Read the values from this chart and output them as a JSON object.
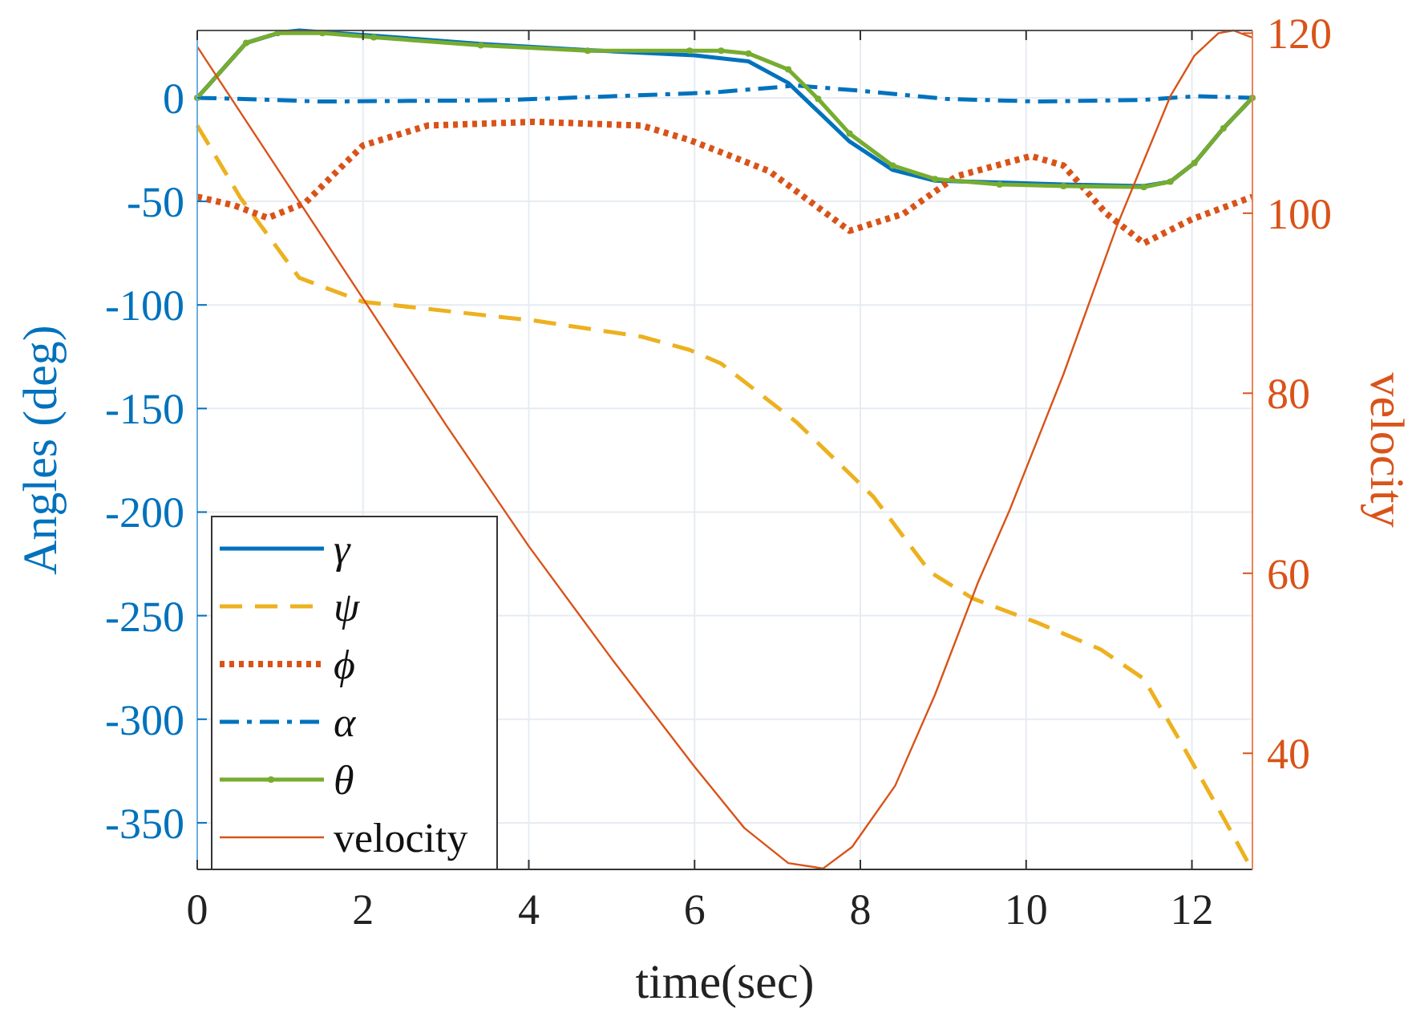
{
  "chart_data": {
    "type": "line",
    "xlabel": "time(sec)",
    "ylabel": "Angles (deg)",
    "y2label": "velocity",
    "xlim": [
      0,
      12.73
    ],
    "xticks": [
      0,
      2,
      4,
      6,
      8,
      10,
      12
    ],
    "ylim": [
      -372.5,
      32.5
    ],
    "yticks": [
      -350,
      -300,
      -250,
      -200,
      -150,
      -100,
      -50,
      0
    ],
    "y2lim": [
      27.1,
      120.3
    ],
    "y2ticks": [
      40,
      60,
      80,
      100,
      120
    ],
    "grid": true,
    "legend": "bottom left",
    "series": [
      {
        "name": "γ",
        "color": "#0072bd",
        "line_style": "solid",
        "x": [
          0,
          0.59,
          1.0,
          1.23,
          2.13,
          3.42,
          4.71,
          6.0,
          6.65,
          7.13,
          7.87,
          8.39,
          8.9,
          10.45,
          11.42,
          11.74,
          12.03,
          12.38,
          12.73
        ],
        "values": [
          0,
          26.5,
          31.5,
          32.5,
          30,
          26,
          23,
          20.5,
          17.6,
          7.2,
          -21.1,
          -34.8,
          -40,
          -41.8,
          -42.6,
          -40.5,
          -31.5,
          -14.7,
          0
        ]
      },
      {
        "name": "ψ",
        "color": "#edb120",
        "line_style": "dashed",
        "x": [
          0,
          0.52,
          1.23,
          2.0,
          4.07,
          5.36,
          5.94,
          6.32,
          7.23,
          8.16,
          8.84,
          9.36,
          10.13,
          10.9,
          11.42,
          11.87,
          12.38,
          12.68
        ],
        "values": [
          -13.4,
          -48.2,
          -86.9,
          -98.5,
          -107.6,
          -115.3,
          -121.7,
          -128.3,
          -156.6,
          -192.7,
          -228.9,
          -241.8,
          -253.3,
          -266.3,
          -280.5,
          -311.4,
          -347.5,
          -369.4
        ]
      },
      {
        "name": "ϕ",
        "color": "#d95319",
        "line_style": "dotted",
        "x": [
          0,
          0.45,
          0.85,
          1.3,
          2.0,
          2.78,
          4.07,
          5.36,
          5.94,
          6.32,
          6.9,
          7.87,
          8.52,
          9.16,
          10.06,
          10.45,
          10.97,
          11.42,
          12.0,
          12.73
        ],
        "values": [
          -47.8,
          -52,
          -58,
          -50.8,
          -23,
          -13.4,
          -11.6,
          -13.4,
          -20.4,
          -26.3,
          -35.4,
          -64.2,
          -56,
          -37.9,
          -28.1,
          -32.7,
          -56,
          -70.2,
          -58.6,
          -47.8
        ]
      },
      {
        "name": "α",
        "color": "#0072bd",
        "line_style": "dashdot",
        "x": [
          0,
          0.5,
          1.49,
          3.65,
          5.94,
          6.32,
          7.23,
          8.0,
          9.03,
          10.13,
          11.42,
          12.06,
          12.73
        ],
        "values": [
          0,
          -0.5,
          -1.8,
          -1.2,
          2.1,
          2.9,
          5.9,
          3.4,
          -0.5,
          -1.8,
          -1,
          0.8,
          0
        ]
      },
      {
        "name": "θ",
        "color": "#77ac30",
        "line_style": "solid",
        "marker": "circle",
        "x": [
          0,
          0.59,
          0.97,
          1.51,
          2.13,
          3.42,
          4.71,
          5.94,
          6.32,
          6.65,
          7.13,
          7.49,
          7.87,
          8.39,
          8.9,
          9.68,
          10.45,
          11.42,
          11.74,
          12.03,
          12.38,
          12.73
        ],
        "values": [
          0,
          26.5,
          31.2,
          31.2,
          29.2,
          25.3,
          22.7,
          22.7,
          22.7,
          21.4,
          13.7,
          -0.5,
          -17.3,
          -32.7,
          -39.2,
          -41.8,
          -42.6,
          -43.1,
          -40.5,
          -31.5,
          -14.7,
          0
        ]
      },
      {
        "name": "velocity",
        "color": "#d95319",
        "line_style": "solid",
        "axis": "y2",
        "x": [
          0,
          1,
          2,
          3,
          4,
          5,
          6,
          6.6,
          7.13,
          7.55,
          7.9,
          8.42,
          8.9,
          9.42,
          9.8,
          10.45,
          11.1,
          11.74,
          12.03,
          12.32,
          12.5,
          12.73
        ],
        "values": [
          118.5,
          104.5,
          90.5,
          76.5,
          63,
          50.5,
          38.5,
          31.7,
          27.8,
          27.2,
          29.6,
          36.4,
          46.5,
          59,
          67,
          82.1,
          98.7,
          113,
          117.5,
          120,
          120.3,
          119.5
        ]
      }
    ]
  }
}
